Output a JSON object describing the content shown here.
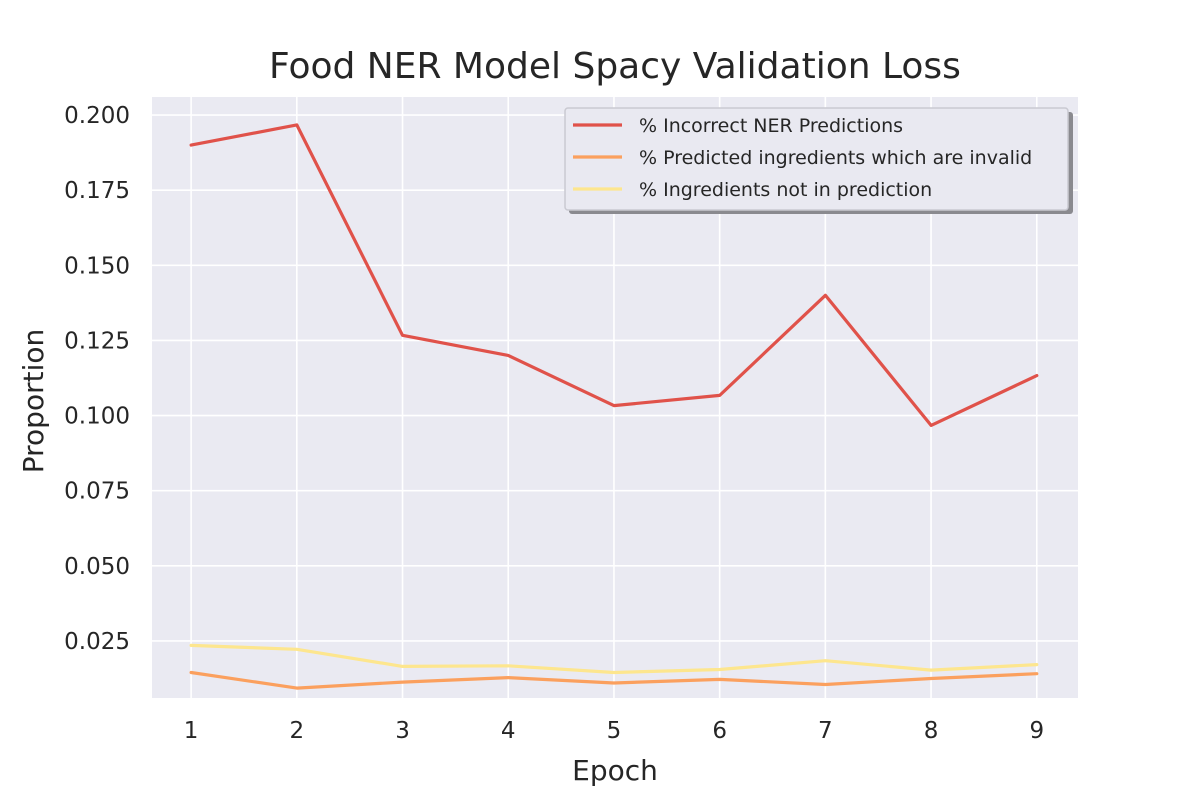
{
  "chart_data": {
    "type": "line",
    "title": "Food NER Model Spacy Validation Loss",
    "xlabel": "Epoch",
    "ylabel": "Proportion",
    "x": [
      1,
      2,
      3,
      4,
      5,
      6,
      7,
      8,
      9
    ],
    "xticks": [
      "1",
      "2",
      "3",
      "4",
      "5",
      "6",
      "7",
      "8",
      "9"
    ],
    "xlim": [
      0.63,
      9.39
    ],
    "ylim": [
      0.006,
      0.206
    ],
    "yticks": [
      0.025,
      0.05,
      0.075,
      0.1,
      0.125,
      0.15,
      0.175,
      0.2
    ],
    "ytick_labels": [
      "0.025",
      "0.050",
      "0.075",
      "0.100",
      "0.125",
      "0.150",
      "0.175",
      "0.200"
    ],
    "grid": true,
    "legend_position": "top-right",
    "series": [
      {
        "name": "% Incorrect NER Predictions",
        "color": "#e0524a",
        "values": [
          0.19,
          0.1967,
          0.1267,
          0.12,
          0.1033,
          0.1067,
          0.14,
          0.0967,
          0.1133
        ]
      },
      {
        "name": "% Predicted ingredients which are invalid",
        "color": "#fba05e",
        "values": [
          0.0145,
          0.0093,
          0.0113,
          0.0128,
          0.011,
          0.0122,
          0.0105,
          0.0125,
          0.0141
        ]
      },
      {
        "name": "% Ingredients not in prediction",
        "color": "#fde68e",
        "values": [
          0.0235,
          0.0222,
          0.0165,
          0.0167,
          0.0145,
          0.0155,
          0.0184,
          0.0153,
          0.0171
        ]
      }
    ]
  },
  "colors": {
    "plot_background": "#eaeaf2",
    "grid": "#ffffff",
    "text": "#262626"
  }
}
